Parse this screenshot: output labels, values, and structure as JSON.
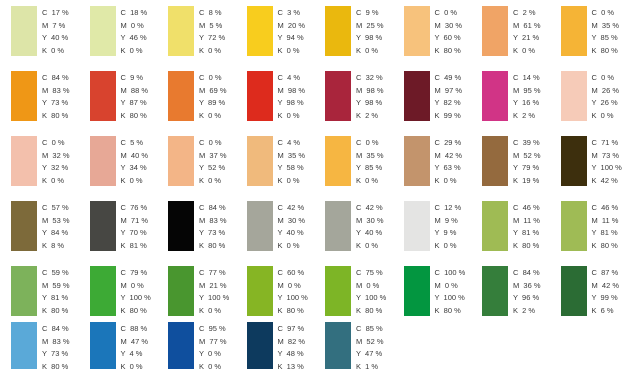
{
  "rows": [
    [
      {
        "color": "#dde5a8",
        "c": "17 %",
        "m": "7 %",
        "y": "40 %",
        "k": "0 %"
      },
      {
        "color": "#e0e9a8",
        "c": "18 %",
        "m": "0 %",
        "y": "46 %",
        "k": "0 %"
      },
      {
        "color": "#f0e06a",
        "c": "8 %",
        "m": "5 %",
        "y": "72 %",
        "k": "0 %"
      },
      {
        "color": "#f8cd1e",
        "c": "3 %",
        "m": "20 %",
        "y": "94 %",
        "k": "0 %"
      },
      {
        "color": "#eab80e",
        "c": "9 %",
        "m": "25 %",
        "y": "98 %",
        "k": "0 %"
      },
      {
        "color": "#f7c27c",
        "c": "0 %",
        "m": "30 %",
        "y": "60 %",
        "k": "80 %"
      },
      {
        "color": "#f0a466",
        "c": "2 %",
        "m": "61 %",
        "y": "21 %",
        "k": "0 %"
      },
      {
        "color": "#f5b436",
        "c": "0 %",
        "m": "35 %",
        "y": "85 %",
        "k": "80 %"
      }
    ],
    [
      {
        "color": "#ef9716",
        "c": "84 %",
        "m": "83 %",
        "y": "73 %",
        "k": "80 %"
      },
      {
        "color": "#d8432e",
        "c": "9 %",
        "m": "88 %",
        "y": "87 %",
        "k": "80 %"
      },
      {
        "color": "#e87a2f",
        "c": "0 %",
        "m": "69 %",
        "y": "89 %",
        "k": "0 %"
      },
      {
        "color": "#dd2b1d",
        "c": "4 %",
        "m": "98 %",
        "y": "98 %",
        "k": "0 %"
      },
      {
        "color": "#a9253c",
        "c": "32 %",
        "m": "98 %",
        "y": "98 %",
        "k": "2 %"
      },
      {
        "color": "#6d1a27",
        "c": "49 %",
        "m": "97 %",
        "y": "82 %",
        "k": "99 %"
      },
      {
        "color": "#d13486",
        "c": "14 %",
        "m": "95 %",
        "y": "16 %",
        "k": "2 %"
      },
      {
        "color": "#f6cbb8",
        "c": "0 %",
        "m": "26 %",
        "y": "26 %",
        "k": "0 %"
      }
    ],
    [
      {
        "color": "#f3c0ac",
        "c": "0 %",
        "m": "32 %",
        "y": "32 %",
        "k": "0 %"
      },
      {
        "color": "#e7a896",
        "c": "5 %",
        "m": "40 %",
        "y": "34 %",
        "k": "0 %"
      },
      {
        "color": "#f3b587",
        "c": "0 %",
        "m": "37 %",
        "y": "52 %",
        "k": "0 %"
      },
      {
        "color": "#f0ba7c",
        "c": "4 %",
        "m": "35 %",
        "y": "58 %",
        "k": "0 %"
      },
      {
        "color": "#f6b642",
        "c": "0 %",
        "m": "35 %",
        "y": "85 %",
        "k": "0 %"
      },
      {
        "color": "#c3946c",
        "c": "29 %",
        "m": "42 %",
        "y": "63 %",
        "k": "0 %"
      },
      {
        "color": "#946a3e",
        "c": "39 %",
        "m": "52 %",
        "y": "79 %",
        "k": "19 %"
      },
      {
        "color": "#3d2f0d",
        "c": "71 %",
        "m": "73 %",
        "y": "100 %",
        "k": "42 %"
      }
    ],
    [
      {
        "color": "#7d6a3a",
        "c": "57 %",
        "m": "53 %",
        "y": "84 %",
        "k": "8 %"
      },
      {
        "color": "#474743",
        "c": "76 %",
        "m": "71 %",
        "y": "70 %",
        "k": "81 %"
      },
      {
        "color": "#050505",
        "c": "84 %",
        "m": "83 %",
        "y": "73 %",
        "k": "80 %"
      },
      {
        "color": "#a5a69b",
        "c": "42 %",
        "m": "30 %",
        "y": "40 %",
        "k": "0 %"
      },
      {
        "color": "#a4a69b",
        "c": "42 %",
        "m": "30 %",
        "y": "40 %",
        "k": "0 %"
      },
      {
        "color": "#e4e4e3",
        "c": "12 %",
        "m": "9 %",
        "y": "9 %",
        "k": "0 %"
      },
      {
        "color": "#9fbb54",
        "c": "46 %",
        "m": "11 %",
        "y": "81 %",
        "k": "80 %"
      },
      {
        "color": "#9fbb55",
        "c": "46 %",
        "m": "11 %",
        "y": "81 %",
        "k": "80 %"
      }
    ],
    [
      {
        "color": "#7db25b",
        "c": "59 %",
        "m": "59 %",
        "y": "81 %",
        "k": "80 %"
      },
      {
        "color": "#3daa35",
        "c": "79 %",
        "m": "0 %",
        "y": "100 %",
        "k": "80 %"
      },
      {
        "color": "#49962f",
        "c": "77 %",
        "m": "21 %",
        "y": "100 %",
        "k": "0 %"
      },
      {
        "color": "#86b524",
        "c": "60 %",
        "m": "0 %",
        "y": "100 %",
        "k": "80 %"
      },
      {
        "color": "#7db526",
        "c": "75 %",
        "m": "0 %",
        "y": "100 %",
        "k": "80 %"
      },
      {
        "color": "#039640",
        "c": "100 %",
        "m": "0 %",
        "y": "100 %",
        "k": "80 %"
      },
      {
        "color": "#357e3b",
        "c": "84 %",
        "m": "36 %",
        "y": "96 %",
        "k": "2 %"
      },
      {
        "color": "#2b6c34",
        "c": "87 %",
        "m": "42 %",
        "y": "99 %",
        "k": "6 %"
      }
    ],
    [
      {
        "color": "#5aa9d8",
        "c": "84 %",
        "m": "83 %",
        "y": "73 %",
        "k": "80 %"
      },
      {
        "color": "#1b76ba",
        "c": "88 %",
        "m": "47 %",
        "y": "4 %",
        "k": "0 %"
      },
      {
        "color": "#0f4f9e",
        "c": "95 %",
        "m": "77 %",
        "y": "0 %",
        "k": "0 %"
      },
      {
        "color": "#0d3a5e",
        "c": "97 %",
        "m": "82 %",
        "y": "48 %",
        "k": "13 %"
      },
      {
        "color": "#336f7f",
        "c": "85 %",
        "m": "52 %",
        "y": "47 %",
        "k": "1 %"
      }
    ]
  ]
}
